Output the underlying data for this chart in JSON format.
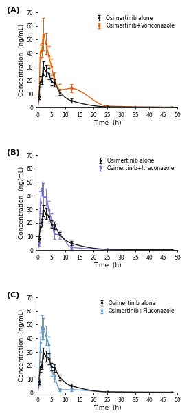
{
  "panels": [
    {
      "label": "(A)",
      "drug_label": "Osimertinib+Voriconazole",
      "drug_color": "#E8600A",
      "black_label": "Osimertinib alone",
      "black_color": "#1a1a1a",
      "black_x": [
        0,
        0.5,
        1,
        1.5,
        2,
        3,
        4,
        5,
        6,
        8,
        12,
        25,
        48
      ],
      "black_y": [
        0,
        8,
        19,
        20,
        29,
        27,
        25,
        19,
        18,
        11,
        5,
        0.5,
        0.2
      ],
      "black_err": [
        0,
        2,
        4,
        3,
        5,
        4,
        4,
        3,
        3,
        2,
        1.5,
        0.3,
        0.1
      ],
      "drug_x": [
        0,
        0.5,
        1,
        1.5,
        2,
        3,
        4,
        5,
        6,
        8,
        12,
        25,
        48
      ],
      "drug_y": [
        0,
        8,
        41,
        42,
        54,
        47,
        38,
        30,
        21,
        13,
        14,
        1.0,
        0.2
      ],
      "drug_err": [
        0,
        2,
        5,
        5,
        12,
        8,
        7,
        6,
        5,
        4,
        3,
        0.5,
        0.1
      ]
    },
    {
      "label": "(B)",
      "drug_label": "Osimertinib+Itraconazole",
      "drug_color": "#7777CC",
      "black_label": "Osimertinib alone",
      "black_color": "#1a1a1a",
      "black_x": [
        0,
        0.5,
        1,
        1.5,
        2,
        3,
        4,
        5,
        6,
        8,
        12,
        25,
        48
      ],
      "black_y": [
        0,
        8,
        17,
        20,
        29,
        27,
        25,
        19,
        18,
        11,
        5,
        0.5,
        0.2
      ],
      "black_err": [
        0,
        2,
        3,
        3,
        4,
        4,
        4,
        3,
        3,
        2,
        1.5,
        0.3,
        0.1
      ],
      "drug_x": [
        0,
        0.5,
        1,
        1.5,
        2,
        3,
        4,
        5,
        6,
        8,
        12,
        25,
        48
      ],
      "drug_y": [
        0,
        5,
        35,
        45,
        39,
        39,
        30,
        22,
        12,
        11,
        2,
        0.5,
        0.2
      ],
      "drug_err": [
        0,
        2,
        8,
        5,
        10,
        6,
        6,
        5,
        4,
        3,
        1.5,
        0.3,
        0.1
      ]
    },
    {
      "label": "(C)",
      "drug_label": "Osimertinib+Fluconazole",
      "drug_color": "#6699CC",
      "black_label": "Osimertinib alone",
      "black_color": "#1a1a1a",
      "black_x": [
        0,
        0.5,
        1,
        1.5,
        2,
        3,
        4,
        5,
        6,
        8,
        12,
        25,
        48
      ],
      "black_y": [
        0,
        8,
        19,
        20,
        29,
        27,
        25,
        19,
        18,
        11,
        5,
        0.5,
        0.2
      ],
      "black_err": [
        0,
        2,
        4,
        3,
        4,
        4,
        4,
        3,
        3,
        2,
        1.5,
        0.3,
        0.1
      ],
      "drug_x": [
        0,
        0.5,
        1,
        1.5,
        2,
        3,
        4,
        5,
        6,
        8,
        12,
        25,
        48
      ],
      "drug_y": [
        0,
        7,
        37,
        48,
        47,
        42,
        35,
        16,
        12,
        2,
        2,
        0.5,
        0.2
      ],
      "drug_err": [
        0,
        2,
        7,
        9,
        8,
        7,
        6,
        4,
        4,
        1,
        1,
        0.3,
        0.1
      ]
    }
  ],
  "ylim": [
    0,
    70
  ],
  "yticks": [
    0,
    10,
    20,
    30,
    40,
    50,
    60,
    70
  ],
  "xlim": [
    0,
    50
  ],
  "xticks": [
    0,
    5,
    10,
    15,
    20,
    25,
    30,
    35,
    40,
    45,
    50
  ],
  "xlabel": "Time  (h)",
  "ylabel": "Concentration  (ng/mL)",
  "bg_color": "#ffffff",
  "fontsize_label": 6.5,
  "fontsize_tick": 5.5,
  "fontsize_legend": 5.5,
  "fontsize_panel": 8,
  "linewidth": 1.0,
  "marker": "s",
  "markersize": 2.0,
  "capsize": 1.5,
  "elinewidth": 0.7
}
